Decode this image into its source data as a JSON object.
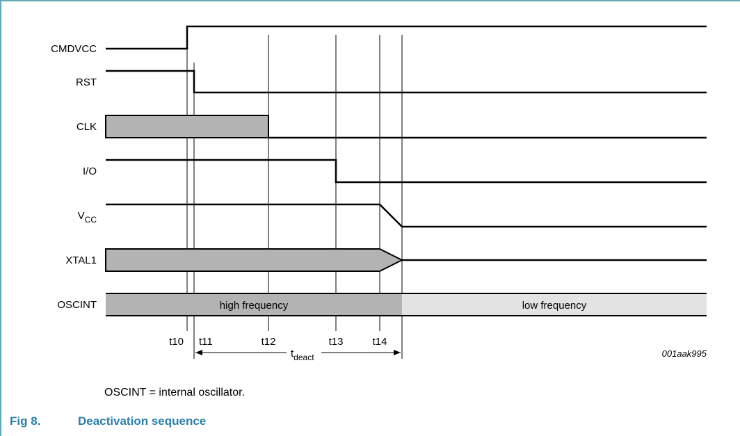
{
  "signals": [
    {
      "id": "cmdvcc",
      "label": "CMDVCC"
    },
    {
      "id": "rst",
      "label": "RST"
    },
    {
      "id": "clk",
      "label": "CLK"
    },
    {
      "id": "io",
      "label": "I/O"
    },
    {
      "id": "vcc",
      "label": "V",
      "sub": "CC"
    },
    {
      "id": "xtal1",
      "label": "XTAL1"
    },
    {
      "id": "oscint",
      "label": "OSCINT"
    }
  ],
  "oscint_regions": {
    "high": "high frequency",
    "low": "low frequency"
  },
  "time_markers": [
    "t10",
    "t11",
    "t12",
    "t13",
    "t14"
  ],
  "tdeact": {
    "label": "t",
    "sub": "deact"
  },
  "figure_id": "001aak995",
  "note": "OSCINT = internal oscillator.",
  "caption": {
    "number": "Fig 8.",
    "title": "Deactivation sequence"
  },
  "colors": {
    "accent": "#2a7fa8",
    "grey_fill": "#b3b3b3",
    "light_fill": "#e3e3e3",
    "rule": "#5fa8b4"
  }
}
